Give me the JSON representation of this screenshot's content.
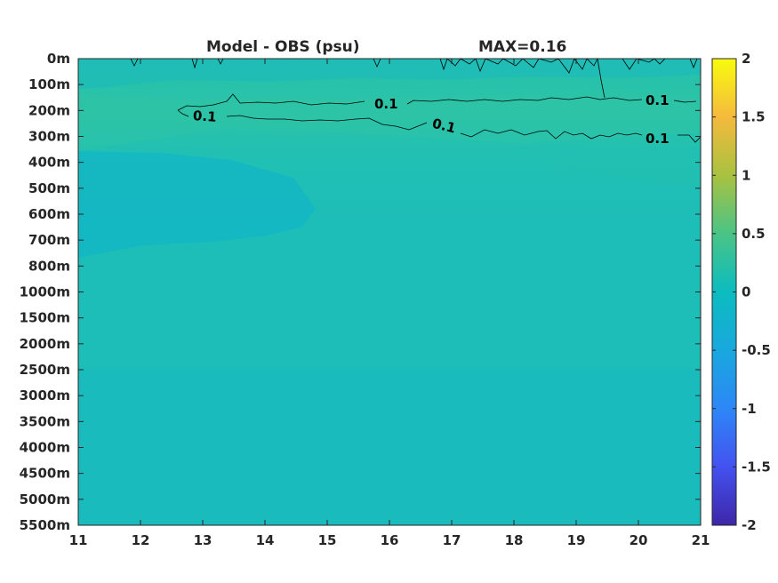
{
  "chart_data": {
    "type": "heatmap",
    "title_left": "Model - OBS (psu)",
    "title_right": "MAX=0.16",
    "x_ticks": [
      "11",
      "12",
      "13",
      "14",
      "15",
      "16",
      "17",
      "18",
      "19",
      "20",
      "21"
    ],
    "y_ticks": [
      "0m",
      "100m",
      "200m",
      "300m",
      "400m",
      "500m",
      "600m",
      "700m",
      "800m",
      "1000m",
      "1500m",
      "2000m",
      "2500m",
      "3000m",
      "3500m",
      "4000m",
      "4500m",
      "5000m",
      "5500m"
    ],
    "xlim": [
      11,
      21
    ],
    "colorbar": {
      "ticks": [
        "2",
        "1.5",
        "1",
        "0.5",
        "0",
        "-0.5",
        "-1",
        "-1.5",
        "-2"
      ],
      "range": [
        -2,
        2
      ],
      "colormap": "parula"
    },
    "contour_level": 0.1,
    "contour_labels": [
      "0.1",
      "0.1",
      "0.1",
      "0.1"
    ],
    "colors": {
      "base": "#1dbdb8",
      "surface_band": "#2fc4a4",
      "upper": "#22c0b3",
      "lower": "#18bbbc",
      "min_patch": "#12b7c4"
    }
  }
}
